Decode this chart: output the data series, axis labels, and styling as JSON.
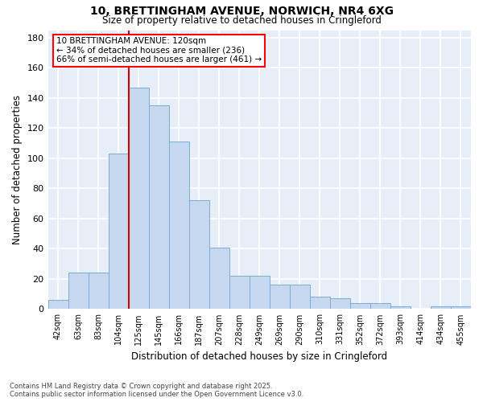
{
  "title_line1": "10, BRETTINGHAM AVENUE, NORWICH, NR4 6XG",
  "title_line2": "Size of property relative to detached houses in Cringleford",
  "xlabel": "Distribution of detached houses by size in Cringleford",
  "ylabel": "Number of detached properties",
  "categories": [
    "42sqm",
    "63sqm",
    "83sqm",
    "104sqm",
    "125sqm",
    "145sqm",
    "166sqm",
    "187sqm",
    "207sqm",
    "228sqm",
    "249sqm",
    "269sqm",
    "290sqm",
    "310sqm",
    "331sqm",
    "352sqm",
    "372sqm",
    "393sqm",
    "414sqm",
    "434sqm",
    "455sqm"
  ],
  "values": [
    6,
    24,
    24,
    103,
    147,
    135,
    111,
    72,
    41,
    22,
    22,
    16,
    16,
    8,
    7,
    4,
    4,
    2,
    0,
    2,
    2
  ],
  "bar_color": "#c5d8f0",
  "bar_edge_color": "#7baed4",
  "background_color": "#e8eef8",
  "grid_color": "#ffffff",
  "vline_color": "#cc0000",
  "vline_x_idx": 4,
  "annotation_title": "10 BRETTINGHAM AVENUE: 120sqm",
  "annotation_line2": "← 34% of detached houses are smaller (236)",
  "annotation_line3": "66% of semi-detached houses are larger (461) →",
  "ylim": [
    0,
    185
  ],
  "yticks": [
    0,
    20,
    40,
    60,
    80,
    100,
    120,
    140,
    160,
    180
  ],
  "footer_line1": "Contains HM Land Registry data © Crown copyright and database right 2025.",
  "footer_line2": "Contains public sector information licensed under the Open Government Licence v3.0.",
  "figsize": [
    6.0,
    5.0
  ],
  "dpi": 100
}
